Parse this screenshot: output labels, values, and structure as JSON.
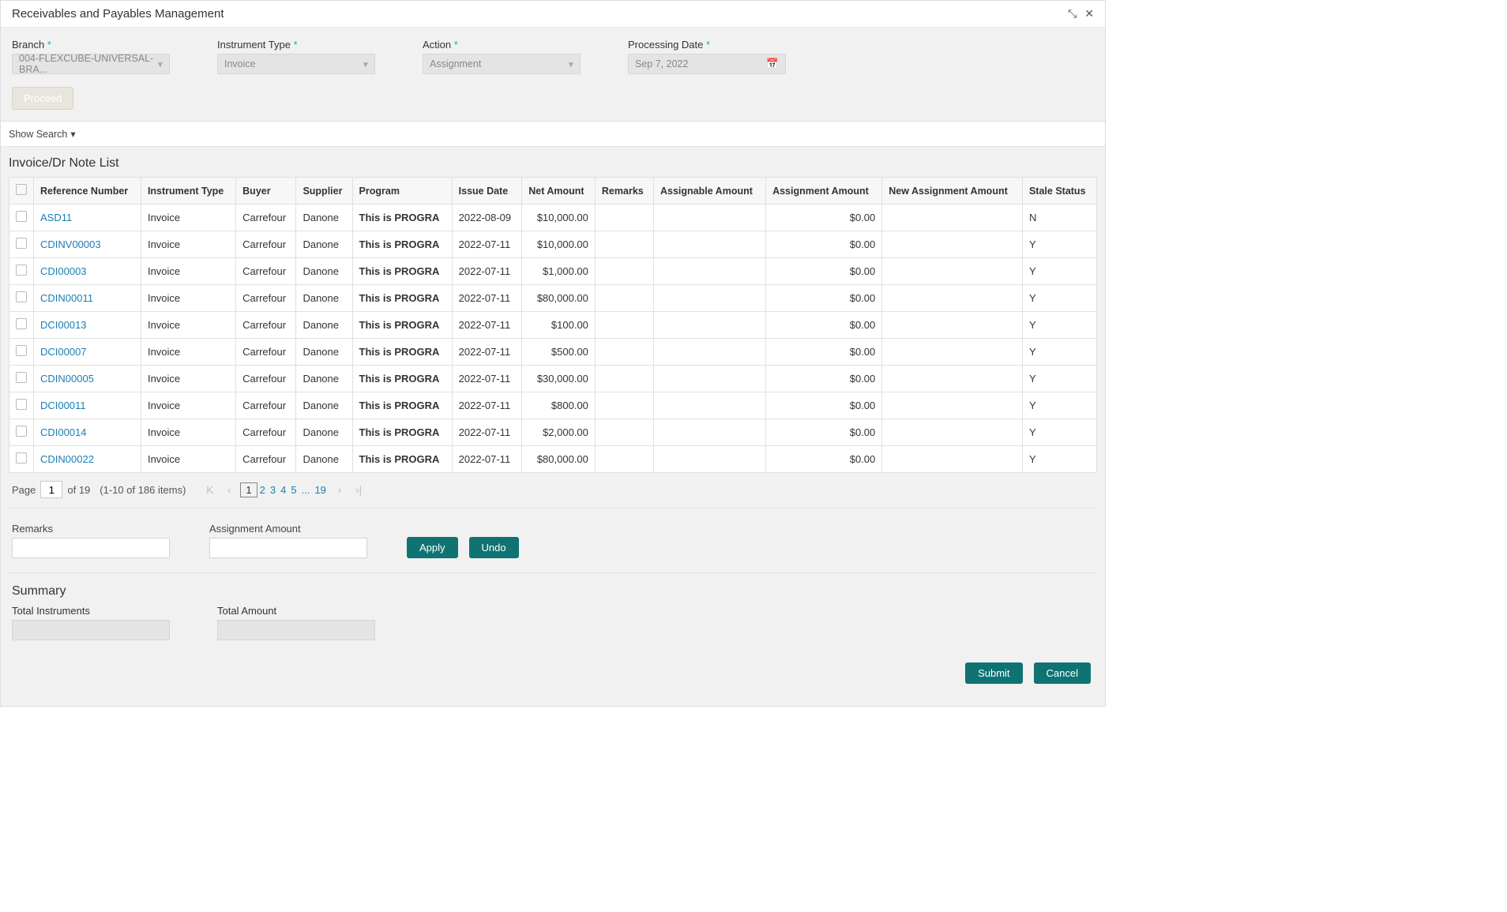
{
  "header": {
    "title": "Receivables and Payables Management"
  },
  "filters": {
    "branch_label": "Branch",
    "branch_value": "004-FLEXCUBE-UNIVERSAL-BRA...",
    "instrument_type_label": "Instrument Type",
    "instrument_type_value": "Invoice",
    "action_label": "Action",
    "action_value": "Assignment",
    "processing_date_label": "Processing Date",
    "processing_date_value": "Sep 7, 2022",
    "proceed_label": "Proceed"
  },
  "show_search_label": "Show Search",
  "list": {
    "title": "Invoice/Dr Note List",
    "columns": {
      "ref": "Reference Number",
      "type": "Instrument Type",
      "buyer": "Buyer",
      "supplier": "Supplier",
      "program": "Program",
      "issue": "Issue Date",
      "net": "Net Amount",
      "remarks": "Remarks",
      "assignable": "Assignable Amount",
      "assignAmt": "Assignment Amount",
      "newAssign": "New Assignment Amount",
      "stale": "Stale Status"
    },
    "rows": [
      {
        "ref": "ASD11",
        "type": "Invoice",
        "buyer": "Carrefour",
        "supplier": "Danone",
        "program": "This is PROGRA",
        "issue": "2022-08-09",
        "net": "$10,000.00",
        "remarks": "",
        "assignable": "",
        "assignAmt": "$0.00",
        "newAssign": "",
        "stale": "N"
      },
      {
        "ref": "CDINV00003",
        "type": "Invoice",
        "buyer": "Carrefour",
        "supplier": "Danone",
        "program": "This is PROGRA",
        "issue": "2022-07-11",
        "net": "$10,000.00",
        "remarks": "",
        "assignable": "",
        "assignAmt": "$0.00",
        "newAssign": "",
        "stale": "Y"
      },
      {
        "ref": "CDI00003",
        "type": "Invoice",
        "buyer": "Carrefour",
        "supplier": "Danone",
        "program": "This is PROGRA",
        "issue": "2022-07-11",
        "net": "$1,000.00",
        "remarks": "",
        "assignable": "",
        "assignAmt": "$0.00",
        "newAssign": "",
        "stale": "Y"
      },
      {
        "ref": "CDIN00011",
        "type": "Invoice",
        "buyer": "Carrefour",
        "supplier": "Danone",
        "program": "This is PROGRA",
        "issue": "2022-07-11",
        "net": "$80,000.00",
        "remarks": "",
        "assignable": "",
        "assignAmt": "$0.00",
        "newAssign": "",
        "stale": "Y"
      },
      {
        "ref": "DCI00013",
        "type": "Invoice",
        "buyer": "Carrefour",
        "supplier": "Danone",
        "program": "This is PROGRA",
        "issue": "2022-07-11",
        "net": "$100.00",
        "remarks": "",
        "assignable": "",
        "assignAmt": "$0.00",
        "newAssign": "",
        "stale": "Y"
      },
      {
        "ref": "DCI00007",
        "type": "Invoice",
        "buyer": "Carrefour",
        "supplier": "Danone",
        "program": "This is PROGRA",
        "issue": "2022-07-11",
        "net": "$500.00",
        "remarks": "",
        "assignable": "",
        "assignAmt": "$0.00",
        "newAssign": "",
        "stale": "Y"
      },
      {
        "ref": "CDIN00005",
        "type": "Invoice",
        "buyer": "Carrefour",
        "supplier": "Danone",
        "program": "This is PROGRA",
        "issue": "2022-07-11",
        "net": "$30,000.00",
        "remarks": "",
        "assignable": "",
        "assignAmt": "$0.00",
        "newAssign": "",
        "stale": "Y"
      },
      {
        "ref": "DCI00011",
        "type": "Invoice",
        "buyer": "Carrefour",
        "supplier": "Danone",
        "program": "This is PROGRA",
        "issue": "2022-07-11",
        "net": "$800.00",
        "remarks": "",
        "assignable": "",
        "assignAmt": "$0.00",
        "newAssign": "",
        "stale": "Y"
      },
      {
        "ref": "CDI00014",
        "type": "Invoice",
        "buyer": "Carrefour",
        "supplier": "Danone",
        "program": "This is PROGRA",
        "issue": "2022-07-11",
        "net": "$2,000.00",
        "remarks": "",
        "assignable": "",
        "assignAmt": "$0.00",
        "newAssign": "",
        "stale": "Y"
      },
      {
        "ref": "CDIN00022",
        "type": "Invoice",
        "buyer": "Carrefour",
        "supplier": "Danone",
        "program": "This is PROGRA",
        "issue": "2022-07-11",
        "net": "$80,000.00",
        "remarks": "",
        "assignable": "",
        "assignAmt": "$0.00",
        "newAssign": "",
        "stale": "Y"
      }
    ]
  },
  "pager": {
    "page_label": "Page",
    "page_value": "1",
    "of_label": "of 19",
    "range_label": "(1-10 of 186 items)",
    "pages": [
      "1",
      "2",
      "3",
      "4",
      "5",
      "...",
      "19"
    ]
  },
  "bulk": {
    "remarks_label": "Remarks",
    "assign_amount_label": "Assignment Amount",
    "apply_label": "Apply",
    "undo_label": "Undo"
  },
  "summary": {
    "title": "Summary",
    "total_instruments_label": "Total Instruments",
    "total_amount_label": "Total Amount"
  },
  "footer": {
    "submit_label": "Submit",
    "cancel_label": "Cancel"
  },
  "style": {
    "primary_btn_bg": "#0f7373",
    "link_color": "#1b7eb3"
  }
}
